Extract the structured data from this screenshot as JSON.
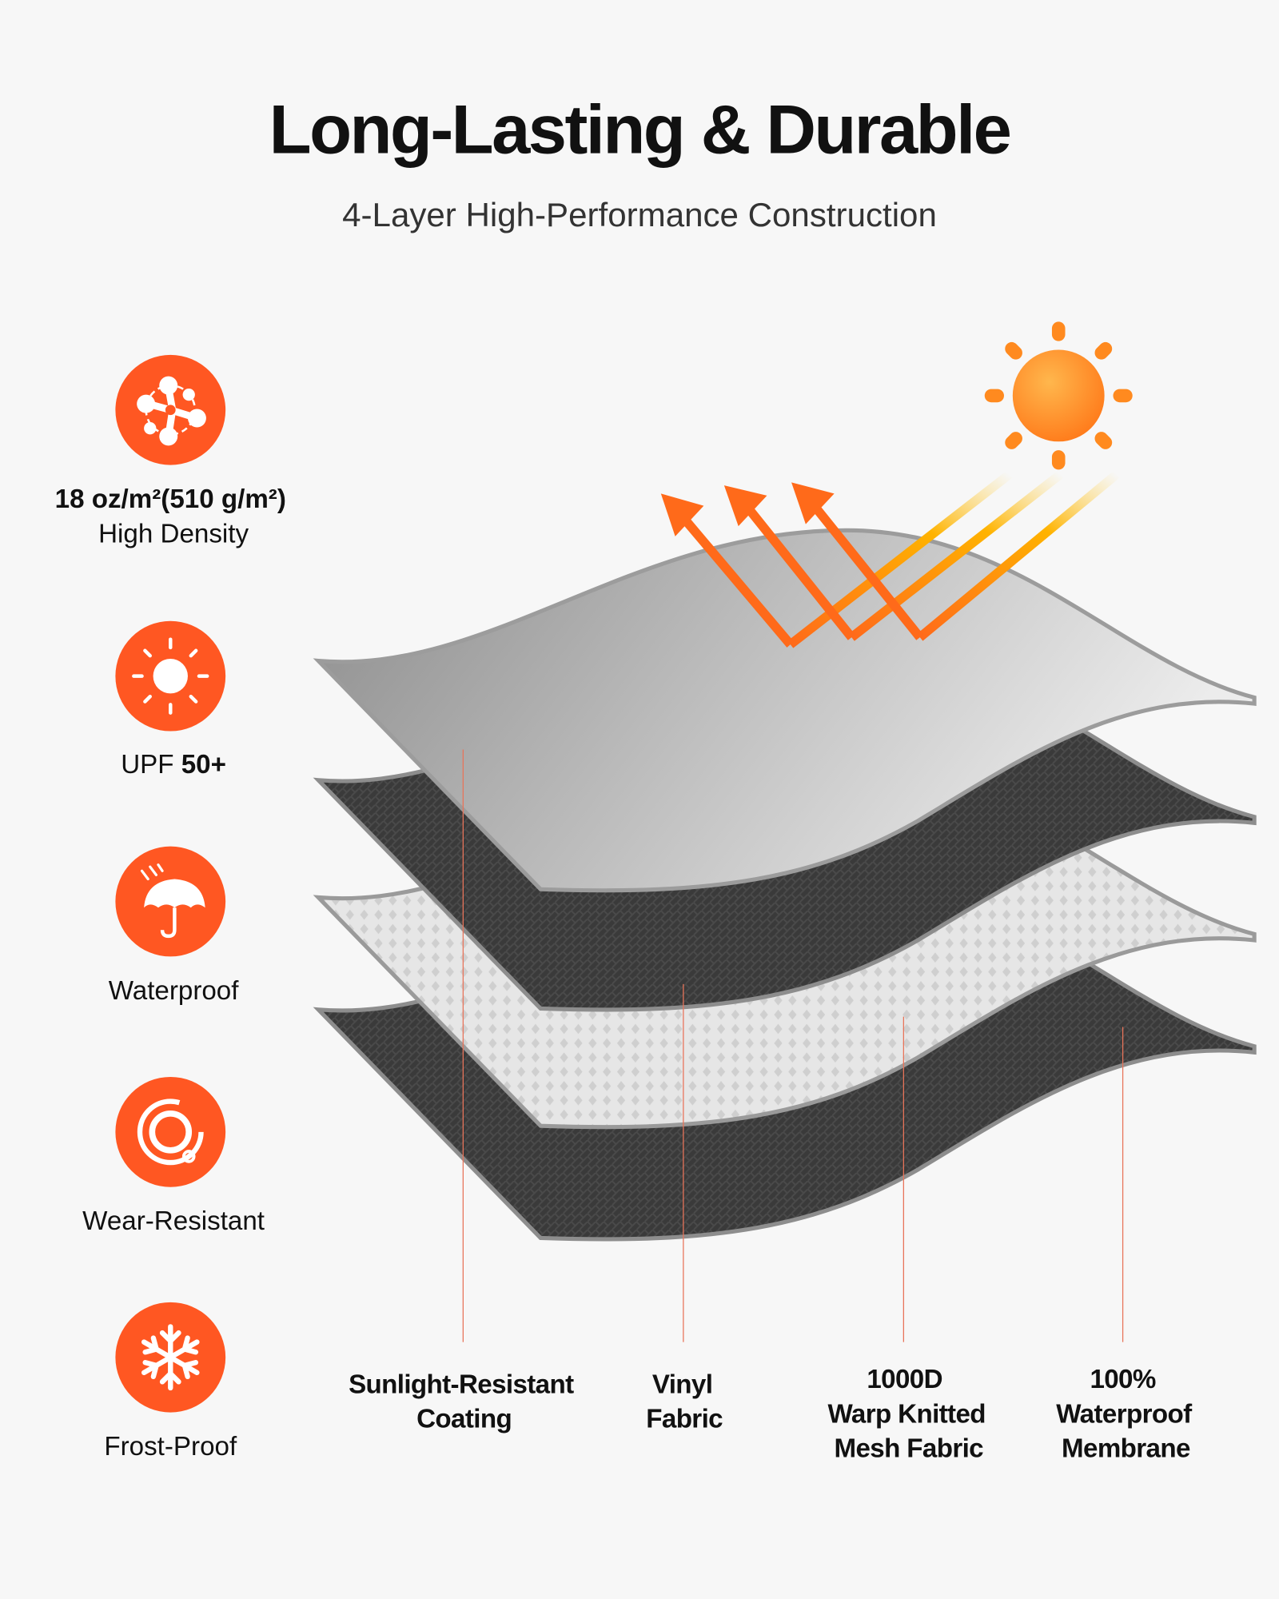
{
  "header": {
    "title": "Long-Lasting & Durable",
    "subtitle": "4-Layer High-Performance Construction"
  },
  "colors": {
    "accent": "#ff5722",
    "background": "#f7f7f7",
    "text": "#111111"
  },
  "features": [
    {
      "icon": "molecule-icon",
      "bold": "18 oz/m²(510 g/m²)",
      "label": "High Density"
    },
    {
      "icon": "sun-icon",
      "label": "UPF ",
      "bold": "50+"
    },
    {
      "icon": "umbrella-rain-icon",
      "label": "Waterproof"
    },
    {
      "icon": "wear-ring-icon",
      "label": "Wear-Resistant"
    },
    {
      "icon": "snowflake-icon",
      "label": "Frost-Proof"
    }
  ],
  "layers": [
    {
      "lines": [
        "Sunlight-Resistant",
        "Coating"
      ]
    },
    {
      "lines": [
        "Vinyl",
        "Fabric"
      ]
    },
    {
      "lines": [
        "1000D",
        "Warp Knitted",
        "Mesh Fabric"
      ]
    },
    {
      "lines": [
        "100%",
        "Waterproof",
        "Membrane"
      ]
    }
  ]
}
